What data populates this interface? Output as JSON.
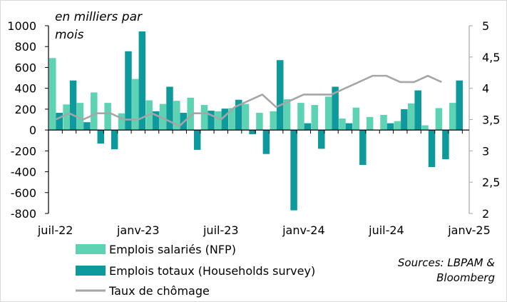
{
  "chart_data": {
    "type": "bar+line",
    "unit_label": [
      "en milliers par",
      "mois"
    ],
    "months": [
      "2022-07",
      "2022-08",
      "2022-09",
      "2022-10",
      "2022-11",
      "2022-12",
      "2023-01",
      "2023-02",
      "2023-03",
      "2023-04",
      "2023-05",
      "2023-06",
      "2023-07",
      "2023-08",
      "2023-09",
      "2023-10",
      "2023-11",
      "2023-12",
      "2024-01",
      "2024-02",
      "2024-03",
      "2024-04",
      "2024-05",
      "2024-06",
      "2024-07",
      "2024-08",
      "2024-09",
      "2024-10",
      "2024-11",
      "2024-12",
      "2025-01"
    ],
    "x_tick_labels": [
      "juil-22",
      "janv-23",
      "juil-23",
      "janv-24",
      "juil-24",
      "janv-25"
    ],
    "x_tick_month_index": [
      0,
      6,
      12,
      18,
      24,
      30
    ],
    "y_left": {
      "range": [
        -800,
        1000
      ],
      "step": 200,
      "ticks": [
        "-800",
        "-600",
        "-400",
        "-200",
        "0",
        "200",
        "400",
        "600",
        "800",
        "1000"
      ]
    },
    "y_right": {
      "range": [
        2,
        5
      ],
      "step": 0.5,
      "ticks": [
        "2",
        "2,5",
        "3",
        "3,5",
        "4",
        "4,5",
        "5"
      ]
    },
    "series": [
      {
        "name": "Emplois salariés (NFP)",
        "type": "bar",
        "axis": "left",
        "color": "#5ed3b4",
        "values": [
          690,
          245,
          260,
          360,
          260,
          160,
          490,
          285,
          250,
          280,
          310,
          240,
          180,
          210,
          250,
          165,
          180,
          295,
          260,
          240,
          320,
          110,
          215,
          125,
          145,
          85,
          255,
          45,
          210,
          260,
          null
        ]
      },
      {
        "name": "Emplois totaux (Households survey)",
        "type": "bar",
        "axis": "left",
        "color": "#0e9a9c",
        "values": [
          165,
          475,
          75,
          -130,
          -185,
          755,
          945,
          180,
          415,
          165,
          -190,
          185,
          205,
          290,
          -40,
          -230,
          670,
          -770,
          65,
          -180,
          415,
          65,
          -335,
          null,
          65,
          200,
          380,
          -355,
          -280,
          475,
          null
        ]
      },
      {
        "name": "Taux de chômage",
        "type": "line",
        "axis": "right",
        "color": "#a6a6a6",
        "values": [
          3.5,
          3.6,
          3.5,
          3.6,
          3.6,
          3.5,
          3.5,
          3.6,
          3.5,
          3.4,
          3.6,
          3.6,
          3.5,
          3.7,
          3.8,
          3.9,
          3.7,
          3.8,
          3.9,
          3.9,
          3.9,
          4.0,
          4.1,
          4.2,
          4.2,
          4.1,
          4.1,
          4.2,
          4.1,
          null,
          null
        ]
      }
    ],
    "legend": [
      "Emplois salariés (NFP)",
      "Emplois totaux (Households survey)",
      "Taux de chômage"
    ],
    "legend_position": "bottom-left",
    "grid": false
  },
  "source_lines": [
    "Sources: LBPAM &",
    "Bloomberg"
  ]
}
